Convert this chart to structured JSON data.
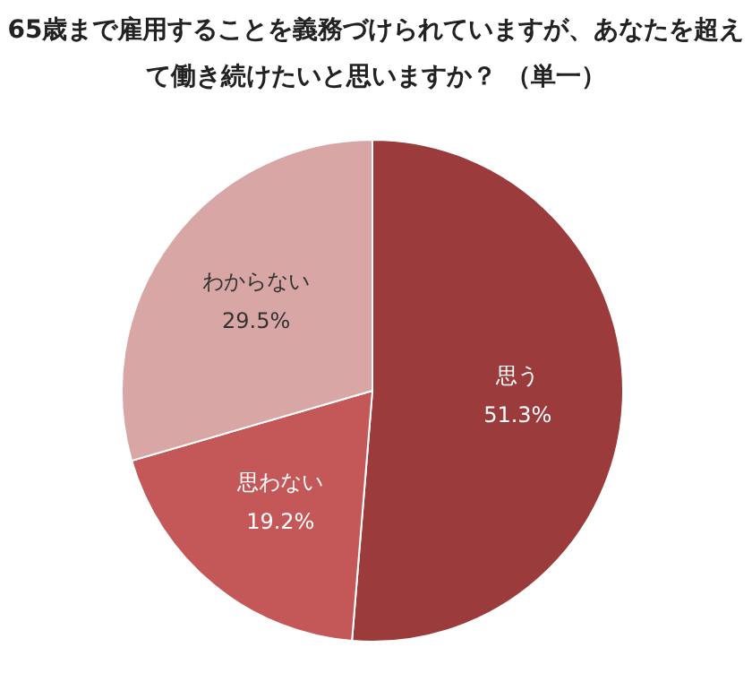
{
  "chart_data": {
    "type": "pie",
    "title": "65歳まで雇用することを義務づけられていますが、あなたを超えて働き続けたいと思いますか？ （単一）",
    "categories": [
      "思う",
      "思わない",
      "わからない"
    ],
    "values": [
      51.3,
      19.2,
      29.5
    ],
    "colors": [
      "#9b3b3b",
      "#c45757",
      "#d9a6a6"
    ],
    "value_labels": [
      "51.3%",
      "19.2%",
      "29.5%"
    ]
  }
}
